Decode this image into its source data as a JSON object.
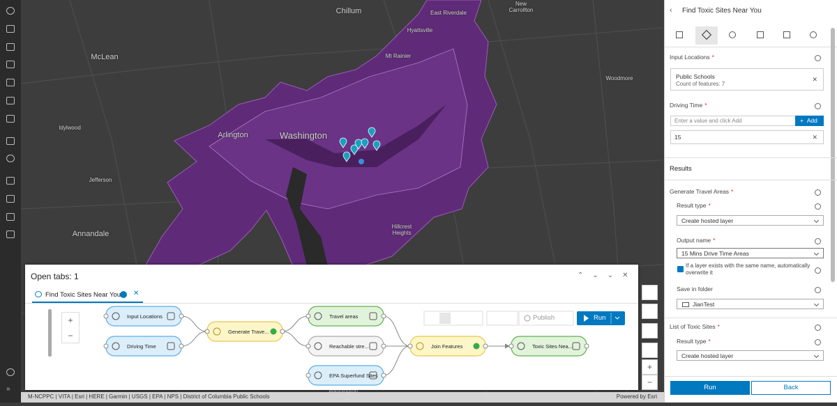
{
  "map": {
    "labels": [
      "Chillum",
      "East Riverdale",
      "New Carrollton",
      "Hyattsville",
      "McLean",
      "Mt Rainier",
      "Woodmore",
      "Idylwood",
      "Arlington",
      "Washington",
      "Jefferson",
      "Hillcrest Heights",
      "Annandale",
      "Washington"
    ]
  },
  "panel": {
    "title": "Open tabs: 1",
    "tab": "Find Toxic Sites Near You",
    "nodes": [
      "Input Locations",
      "Driving Time",
      "Generate Trave...",
      "Travel areas",
      "Reachable stre...",
      "EPA Superfund Sites",
      "Join Features",
      "Toxic Sites Nea..."
    ],
    "publish": "Publish",
    "run": "Run"
  },
  "form": {
    "title": "Find Toxic Sites Near You",
    "required_mark": "*",
    "input_locations": {
      "label": "Input Locations",
      "layer": "Public Schools",
      "count": "Count of features: 7"
    },
    "driving_time": {
      "label": "Driving Time",
      "placeholder": "Enter a value and click Add",
      "add": "Add",
      "value": "15"
    },
    "results": "Results",
    "generate_travel_areas": {
      "label": "Generate Travel Areas",
      "result_type_label": "Result type",
      "result_type": "Create hosted layer",
      "output_name_label": "Output name",
      "output_name": "15 Mins Drive Time Areas",
      "overwrite": "If a layer exists with the same name, automatically overwrite it",
      "folder_label": "Save in folder",
      "folder": "JianTest"
    },
    "list_of_toxic_sites": {
      "label": "List of Toxic Sites",
      "result_type_label": "Result type",
      "result_type": "Create hosted layer"
    },
    "run": "Run",
    "back": "Back"
  },
  "attribution": {
    "sources": "M-NCPPC | VITA | Esri | HERE | Garmin | USGS | EPA | NPS | District of Columbia Public Schools",
    "powered_by": "Powered by Esri"
  }
}
